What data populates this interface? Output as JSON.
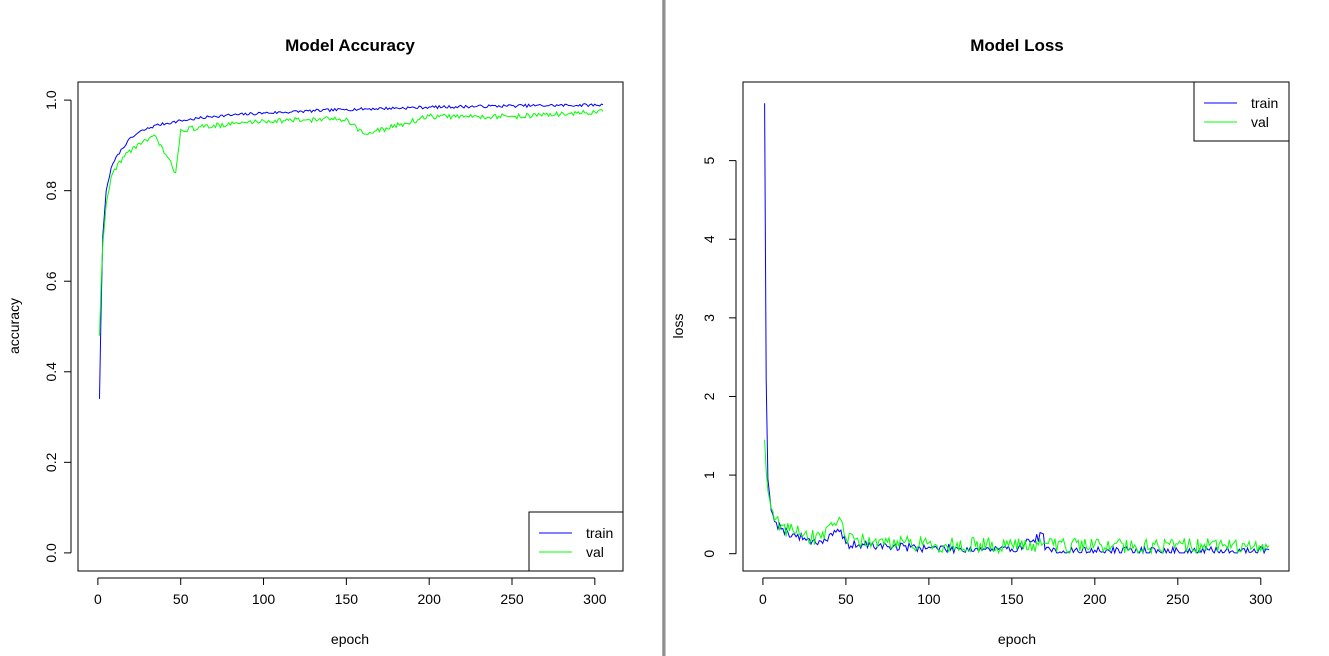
{
  "chart_data": [
    {
      "type": "line",
      "title": "Model Accuracy",
      "xlabel": "epoch",
      "ylabel": "accuracy",
      "xlim": [
        -12,
        317
      ],
      "ylim": [
        -0.04,
        1.04
      ],
      "xticks": [
        0,
        50,
        100,
        150,
        200,
        250,
        300
      ],
      "yticks": [
        0.0,
        0.2,
        0.4,
        0.6,
        0.8,
        1.0
      ],
      "xtick_labels": [
        "0",
        "50",
        "100",
        "150",
        "200",
        "250",
        "300"
      ],
      "ytick_labels": [
        "0.0",
        "0.2",
        "0.4",
        "0.6",
        "0.8",
        "1.0"
      ],
      "legend_position": "bottom-right",
      "grid": false,
      "n_epochs": 305,
      "series": [
        {
          "name": "train",
          "color": "#0000ff",
          "anchors": [
            [
              1,
              0.34
            ],
            [
              2,
              0.55
            ],
            [
              3,
              0.7
            ],
            [
              5,
              0.8
            ],
            [
              8,
              0.85
            ],
            [
              12,
              0.88
            ],
            [
              18,
              0.91
            ],
            [
              25,
              0.93
            ],
            [
              35,
              0.945
            ],
            [
              50,
              0.955
            ],
            [
              70,
              0.965
            ],
            [
              100,
              0.972
            ],
            [
              150,
              0.98
            ],
            [
              200,
              0.985
            ],
            [
              250,
              0.988
            ],
            [
              305,
              0.99
            ]
          ]
        },
        {
          "name": "val",
          "color": "#00ff00",
          "anchors": [
            [
              1,
              0.48
            ],
            [
              2,
              0.6
            ],
            [
              3,
              0.68
            ],
            [
              5,
              0.77
            ],
            [
              8,
              0.83
            ],
            [
              12,
              0.86
            ],
            [
              18,
              0.885
            ],
            [
              25,
              0.905
            ],
            [
              35,
              0.92
            ],
            [
              47,
              0.84
            ],
            [
              50,
              0.935
            ],
            [
              70,
              0.945
            ],
            [
              100,
              0.955
            ],
            [
              150,
              0.96
            ],
            [
              161,
              0.925
            ],
            [
              200,
              0.965
            ],
            [
              250,
              0.965
            ],
            [
              305,
              0.975
            ]
          ]
        }
      ]
    },
    {
      "type": "line",
      "title": "Model Loss",
      "xlabel": "epoch",
      "ylabel": "loss",
      "xlim": [
        -12,
        317
      ],
      "ylim": [
        -0.22,
        6.0
      ],
      "xticks": [
        0,
        50,
        100,
        150,
        200,
        250,
        300
      ],
      "yticks": [
        0,
        1,
        2,
        3,
        4,
        5
      ],
      "xtick_labels": [
        "0",
        "50",
        "100",
        "150",
        "200",
        "250",
        "300"
      ],
      "ytick_labels": [
        "0",
        "1",
        "2",
        "3",
        "4",
        "5"
      ],
      "legend_position": "top-right",
      "grid": false,
      "n_epochs": 305,
      "series": [
        {
          "name": "train",
          "color": "#0000ff",
          "anchors": [
            [
              1,
              5.73
            ],
            [
              2,
              2.2
            ],
            [
              3,
              0.95
            ],
            [
              5,
              0.55
            ],
            [
              8,
              0.4
            ],
            [
              12,
              0.32
            ],
            [
              18,
              0.25
            ],
            [
              25,
              0.2
            ],
            [
              35,
              0.16
            ],
            [
              47,
              0.3
            ],
            [
              50,
              0.13
            ],
            [
              70,
              0.11
            ],
            [
              100,
              0.085
            ],
            [
              150,
              0.06
            ],
            [
              169,
              0.25
            ],
            [
              170,
              0.05
            ],
            [
              200,
              0.045
            ],
            [
              250,
              0.04
            ],
            [
              305,
              0.05
            ]
          ]
        },
        {
          "name": "val",
          "color": "#00ff00",
          "anchors": [
            [
              1,
              1.45
            ],
            [
              2,
              1.05
            ],
            [
              3,
              0.8
            ],
            [
              5,
              0.58
            ],
            [
              8,
              0.45
            ],
            [
              12,
              0.36
            ],
            [
              18,
              0.3
            ],
            [
              25,
              0.25
            ],
            [
              35,
              0.2
            ],
            [
              47,
              0.43
            ],
            [
              50,
              0.2
            ],
            [
              70,
              0.17
            ],
            [
              100,
              0.14
            ],
            [
              150,
              0.12
            ],
            [
              200,
              0.12
            ],
            [
              250,
              0.12
            ],
            [
              305,
              0.1
            ]
          ]
        }
      ]
    }
  ]
}
